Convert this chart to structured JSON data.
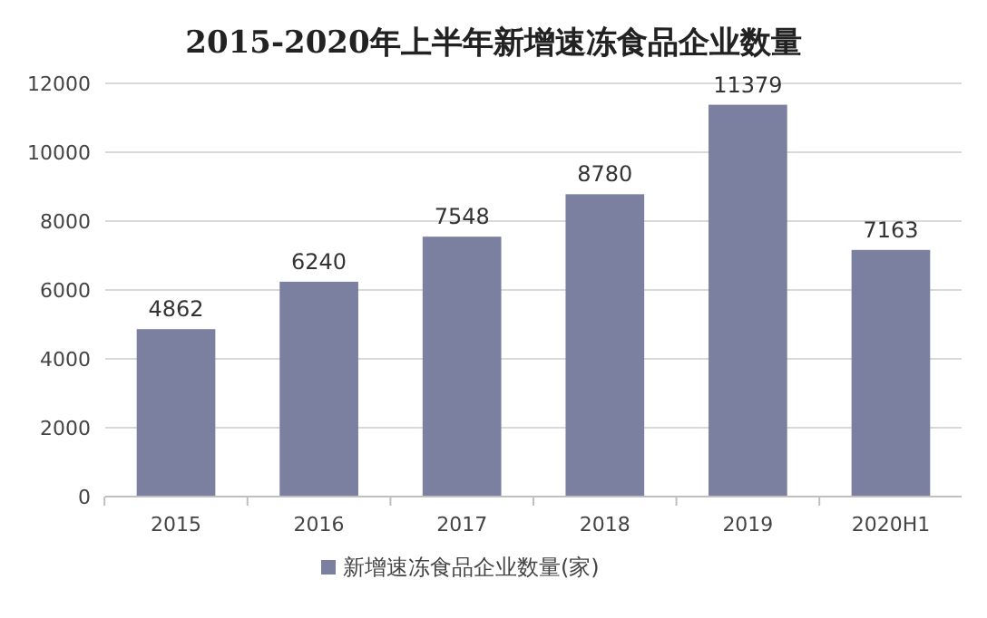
{
  "chart_data": {
    "type": "bar",
    "title": "2015-2020年上半年新增速冻食品企业数量",
    "categories": [
      "2015",
      "2016",
      "2017",
      "2018",
      "2019",
      "2020H1"
    ],
    "series": [
      {
        "name": "新增速冻食品企业数量(家)",
        "color": "#7b80a0",
        "values": [
          4862,
          6240,
          7548,
          8780,
          11379,
          7163
        ]
      }
    ],
    "ylim": [
      0,
      12000
    ],
    "yticks": [
      0,
      2000,
      4000,
      6000,
      8000,
      10000,
      12000
    ],
    "grid": "y",
    "legend": "bottom",
    "data_labels": true
  }
}
